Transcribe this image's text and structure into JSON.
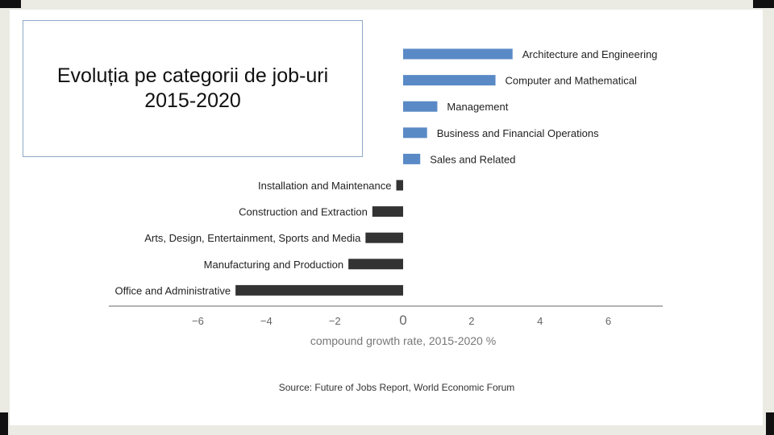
{
  "slide": {
    "title_line1": "Evoluția pe categorii de job-uri",
    "title_line2": "2015-2020"
  },
  "colors": {
    "positive_bar": "#5a8ac6",
    "negative_bar": "#333333",
    "axis": "#9a9a9a",
    "tick_text": "#666666",
    "label_text": "#222222"
  },
  "chart_data": {
    "type": "bar",
    "orientation": "horizontal",
    "categories": [
      "Architecture and Engineering",
      "Computer and Mathematical",
      "Management",
      "Business and Financial Operations",
      "Sales and Related",
      "Installation and Maintenance",
      "Construction and Extraction",
      "Arts, Design, Entertainment, Sports and Media",
      "Manufacturing and Production",
      "Office and Administrative"
    ],
    "values": [
      3.2,
      2.7,
      1.0,
      0.7,
      0.5,
      -0.2,
      -0.9,
      -1.1,
      -1.6,
      -4.9
    ],
    "xlabel": "compound growth rate, 2015-2020 %",
    "xlim": [
      -8.6,
      7.9
    ],
    "xticks": [
      -6,
      -4,
      -2,
      0,
      2,
      4,
      6
    ],
    "xtick_labels": [
      "−6",
      "−4",
      "−2",
      "0",
      "2",
      "4",
      "6"
    ],
    "source": "Source: Future of Jobs Report, World Economic Forum"
  }
}
